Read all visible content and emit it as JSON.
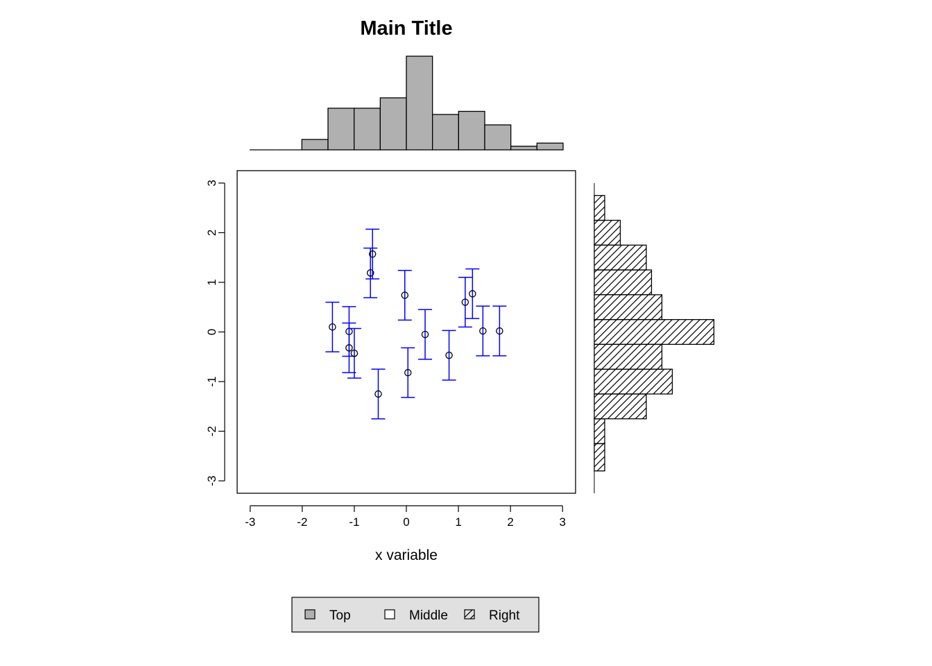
{
  "chart_data": {
    "type": "scatter",
    "title": "Main Title",
    "xlabel": "x variable",
    "ylabel": "",
    "xlim": [
      -3.25,
      3.25
    ],
    "ylim": [
      -3.25,
      3.25
    ],
    "x_ticks": [
      "-3",
      "-2",
      "-1",
      "0",
      "1",
      "2",
      "3"
    ],
    "y_ticks": [
      "-3",
      "-2",
      "-1",
      "0",
      "1",
      "2",
      "3"
    ],
    "grid": false,
    "colors": {
      "errorbar": "#0000ff",
      "top_hist_fill": "#b0b0b0",
      "legend_bg": "#e0e0e0"
    },
    "points": [
      {
        "x": -1.42,
        "y": 0.1,
        "err": 0.5
      },
      {
        "x": -1.1,
        "y": 0.01,
        "err": 0.5
      },
      {
        "x": -1.1,
        "y": -0.32,
        "err": 0.5
      },
      {
        "x": -1.0,
        "y": -0.43,
        "err": 0.5
      },
      {
        "x": -0.69,
        "y": 1.19,
        "err": 0.5
      },
      {
        "x": -0.65,
        "y": 1.57,
        "err": 0.5
      },
      {
        "x": -0.54,
        "y": -1.25,
        "err": 0.5
      },
      {
        "x": -0.03,
        "y": 0.74,
        "err": 0.5
      },
      {
        "x": 0.03,
        "y": -0.82,
        "err": 0.5
      },
      {
        "x": 0.36,
        "y": -0.05,
        "err": 0.5
      },
      {
        "x": 0.82,
        "y": -0.47,
        "err": 0.5
      },
      {
        "x": 1.13,
        "y": 0.6,
        "err": 0.5
      },
      {
        "x": 1.27,
        "y": 0.77,
        "err": 0.5
      },
      {
        "x": 1.47,
        "y": 0.02,
        "err": 0.5
      },
      {
        "x": 1.79,
        "y": 0.02,
        "err": 0.5
      }
    ],
    "top_histogram": {
      "breaks": [
        -3.0,
        -2.5,
        -2.0,
        -1.5,
        -1.0,
        -0.5,
        0.0,
        0.5,
        1.0,
        1.5,
        2.0,
        2.5,
        3.0
      ],
      "counts": [
        0,
        0,
        1,
        4,
        4,
        5,
        9,
        3.4,
        3.7,
        2.4,
        0.35,
        0.65
      ]
    },
    "right_histogram": {
      "breaks": [
        -2.8,
        -2.25,
        -1.75,
        -1.25,
        -0.75,
        -0.25,
        0.25,
        0.75,
        1.25,
        1.75,
        2.25,
        2.75
      ],
      "counts": [
        1,
        1,
        5,
        7.5,
        6.5,
        11.5,
        6.5,
        5.5,
        5,
        2.5,
        1
      ]
    },
    "legend": {
      "placement": "bottom",
      "items": [
        {
          "label": "Top",
          "fill": "gray"
        },
        {
          "label": "Middle",
          "fill": "white"
        },
        {
          "label": "Right",
          "fill": "hatched"
        }
      ]
    }
  }
}
